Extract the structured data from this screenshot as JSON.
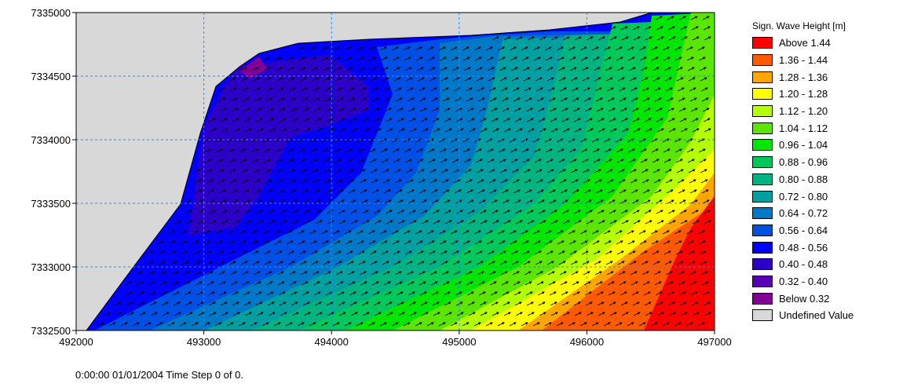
{
  "footer": {
    "time_text": "0:00:00 01/01/2004  Time Step 0 of 0."
  },
  "chart_data": {
    "type": "heatmap",
    "title": "",
    "xlabel": "",
    "ylabel": "",
    "xlim": [
      492000,
      497000
    ],
    "ylim": [
      7332500,
      7335000
    ],
    "x_ticks": [
      492000,
      493000,
      494000,
      495000,
      496000,
      497000
    ],
    "y_ticks": [
      7332500,
      7333000,
      7333500,
      7334000,
      7334500,
      7335000
    ],
    "x_tick_labels": [
      "492000",
      "493000",
      "494000",
      "495000",
      "496000",
      "497000"
    ],
    "y_tick_labels": [
      "7332500",
      "7333000",
      "7333500",
      "7334000",
      "7334500",
      "7335000"
    ],
    "grid": true,
    "grid_style": "dashed",
    "grid_color": "#1e90ff",
    "undefined_region_color": "#d8d8d8",
    "overlay": "wave direction vectors",
    "legend": {
      "title": "Sign. Wave Height [m]",
      "placement": "right",
      "entries": [
        {
          "label": "Above 1.44",
          "color": "#ff0000"
        },
        {
          "label": "1.36 - 1.44",
          "color": "#ff5a00"
        },
        {
          "label": "1.28 - 1.36",
          "color": "#ffa500"
        },
        {
          "label": "1.20 - 1.28",
          "color": "#ffff00"
        },
        {
          "label": "1.12 - 1.20",
          "color": "#b4ff00"
        },
        {
          "label": "1.04 - 1.12",
          "color": "#5ae600"
        },
        {
          "label": "0.96 - 1.04",
          "color": "#00e600"
        },
        {
          "label": "0.88 - 0.96",
          "color": "#00c85a"
        },
        {
          "label": "0.80 - 0.88",
          "color": "#00b482"
        },
        {
          "label": "0.72 - 0.80",
          "color": "#00a0a0"
        },
        {
          "label": "0.64 - 0.72",
          "color": "#0078c8"
        },
        {
          "label": "0.56 - 0.64",
          "color": "#0050e6"
        },
        {
          "label": "0.48 - 0.56",
          "color": "#0000ff"
        },
        {
          "label": "0.40 - 0.48",
          "color": "#2d00c8"
        },
        {
          "label": "0.32 - 0.40",
          "color": "#5a00b4"
        },
        {
          "label": "Below 0.32",
          "color": "#820096"
        },
        {
          "label": "Undefined Value",
          "color": "#d8d8d8"
        }
      ]
    }
  }
}
